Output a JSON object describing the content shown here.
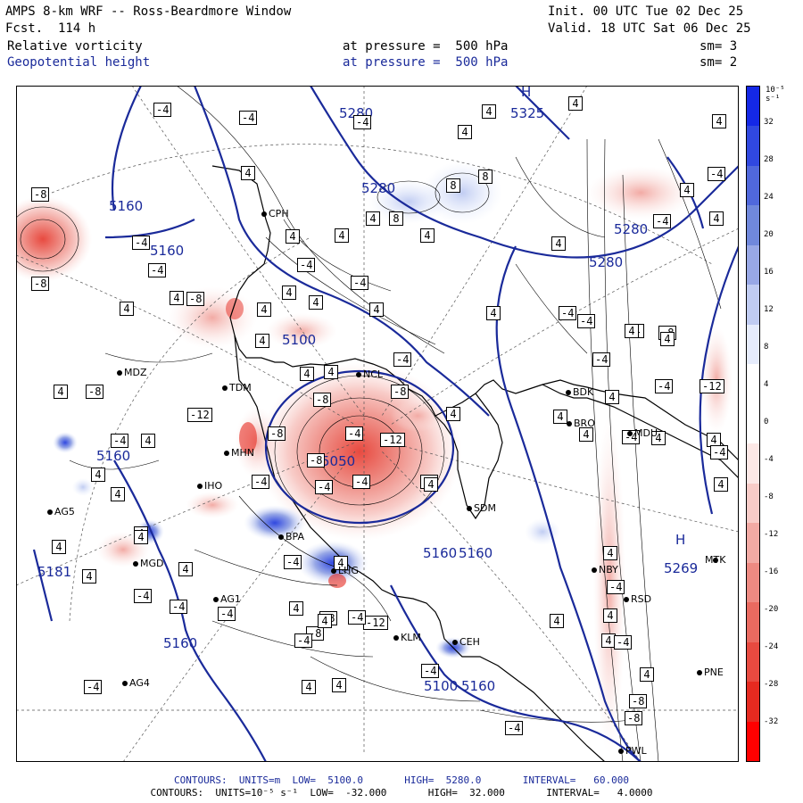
{
  "header": {
    "title": "AMPS 8-km WRF -- Ross-Beardmore Window",
    "fcst": "Fcst.  114 h",
    "init": "Init. 00 UTC Tue 02 Dec 25",
    "valid": "Valid. 18 UTC Sat 06 Dec 25",
    "field1_name": "Relative vorticity",
    "field1_level": "at pressure =  500 hPa",
    "field1_sm": "sm= 3",
    "field2_name": "Geopotential height",
    "field2_level": "at pressure =  500 hPa",
    "field2_sm": "sm= 2"
  },
  "colorbar": {
    "units": "10⁻⁵ s⁻¹",
    "ticks": [
      "32",
      "28",
      "24",
      "20",
      "16",
      "12",
      "8",
      "4",
      "0",
      "-4",
      "-8",
      "-12",
      "-16",
      "-20",
      "-24",
      "-28",
      "-32"
    ],
    "colors": [
      "#1428e6",
      "#3048e0",
      "#5068dc",
      "#7088dc",
      "#98a8e6",
      "#c0ccf2",
      "#e6ecfc",
      "#ffffff",
      "#ffffff",
      "#fce8e6",
      "#f8ccc8",
      "#f2aaa4",
      "#ee8a82",
      "#ea6a60",
      "#e84a40",
      "#e62a20",
      "#ff0000"
    ]
  },
  "footer": {
    "line1": "CONTOURS:  UNITS=m  LOW=  5100.0       HIGH=  5280.0       INTERVAL=   60.000",
    "line2": "CONTOURS:  UNITS=10⁻⁵ s⁻¹  LOW=  -32.000       HIGH=  32.000       INTERVAL=   4.0000"
  },
  "map": {
    "height_labels": [
      "5280",
      "5325",
      "5280",
      "5160",
      "5160",
      "5280",
      "5280",
      "5160",
      "5160",
      "5050",
      "5160",
      "5181",
      "5160",
      "5269",
      "5160",
      "5100",
      "5100"
    ],
    "pressure_centers": [
      "H",
      "H"
    ],
    "stations": [
      "CPH",
      "NCL",
      "MDZ",
      "TDM",
      "MHN",
      "IHO",
      "AG5",
      "MGD",
      "AG1",
      "AG4",
      "BPA",
      "SDM",
      "LHG",
      "KLM",
      "CEH",
      "BDK",
      "MDU",
      "MTK",
      "NBY",
      "PNE",
      "PWL",
      "BRO",
      "RSD"
    ],
    "vorticity_boxes": [
      "-4",
      "-4",
      "4",
      "4",
      "-4",
      "4",
      "4",
      "8",
      "8",
      "-8",
      "4",
      "4",
      "8",
      "4",
      "4",
      "4",
      "-4",
      "4",
      "-4",
      "4",
      "-4",
      "4",
      "-4",
      "-4",
      "-8",
      "4",
      "4",
      "4",
      "4",
      "-8",
      "4",
      "-4",
      "4",
      "4",
      "-4",
      "4",
      "-8",
      "4",
      "-4",
      "4",
      "-8",
      "4",
      "-8",
      "-12",
      "-8",
      "-4",
      "-4",
      "-4",
      "4",
      "4",
      "-8",
      "-12",
      "-4",
      "4",
      "-8",
      "-4",
      "4",
      "4",
      "4",
      "-4",
      "4",
      "4",
      "-4",
      "4",
      "4",
      "4",
      "-4",
      "-4",
      "4",
      "4",
      "-12",
      "4",
      "4",
      "4",
      "4",
      "4",
      "4",
      "4",
      "-4",
      "-4",
      "-4",
      "4",
      "4",
      "-8",
      "-4",
      "-12",
      "-4",
      "4",
      "-8",
      "-4",
      "4",
      "-4",
      "4",
      "4",
      "-4",
      "4",
      "4",
      "-8",
      "4",
      "4",
      "-4",
      "-4",
      "-8",
      "-4",
      "4",
      "-4",
      "-4",
      "-8"
    ]
  }
}
